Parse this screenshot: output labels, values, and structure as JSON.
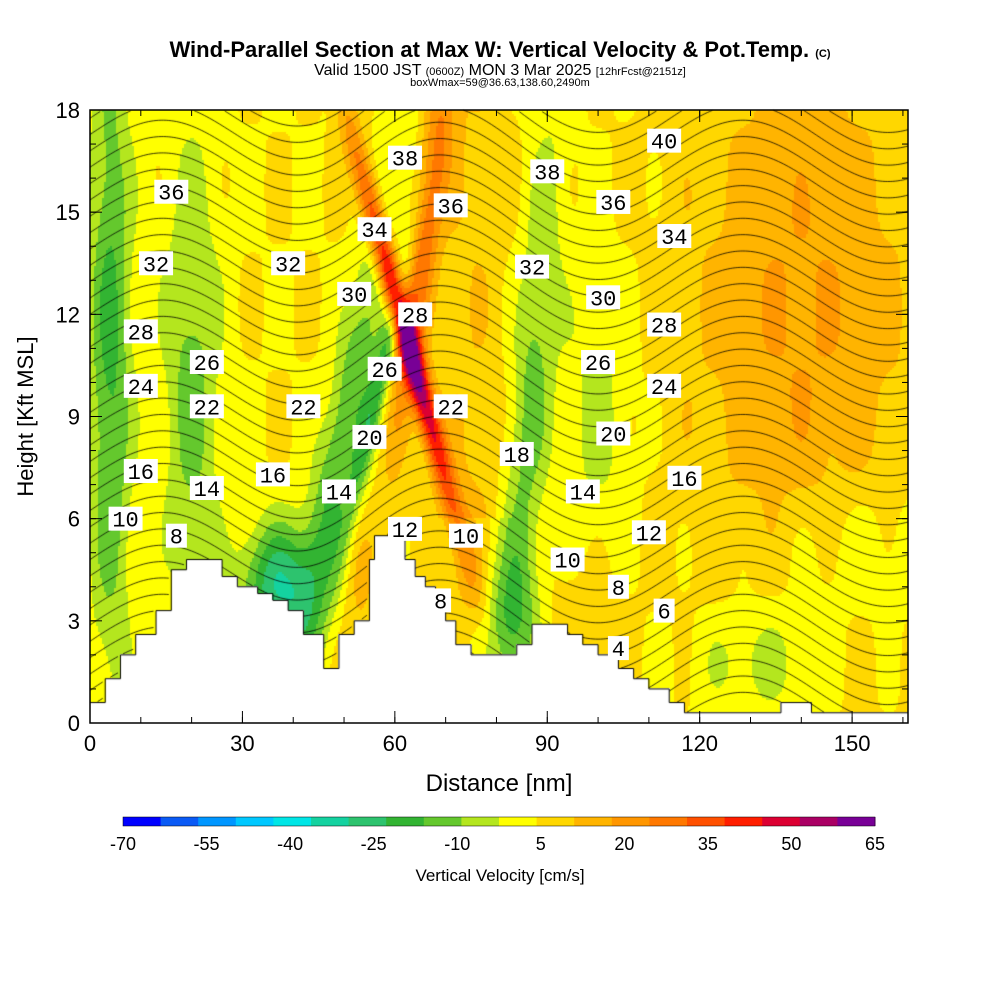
{
  "header": {
    "title": "Wind-Parallel Section at Max W: Vertical Velocity & Pot.Temp.",
    "copyright": "(C)",
    "valid_prefix": "Valid 1500 JST",
    "valid_utc": "(0600Z)",
    "valid_date": "MON 3 Mar 2025",
    "forecast": "[12hrFcst@2151z]",
    "box_info": "boxWmax=59@36.63,138.60,2490m"
  },
  "colorbar": {
    "label": "Vertical Velocity [cm/s]",
    "tick_labels": [
      "-70",
      "-55",
      "-40",
      "-25",
      "-10",
      "5",
      "20",
      "35",
      "50",
      "65"
    ],
    "colors": [
      "#0000ff",
      "#0a5af5",
      "#0096ff",
      "#00c8ff",
      "#00e6e6",
      "#14d2a0",
      "#2dc36e",
      "#32b432",
      "#64c82d",
      "#b4e61e",
      "#ffff00",
      "#ffd700",
      "#ffb400",
      "#ff9600",
      "#ff7800",
      "#ff5000",
      "#ff1e00",
      "#dc0032",
      "#aa0064",
      "#780096"
    ]
  },
  "chart_data": {
    "type": "heatmap",
    "title": "Wind-Parallel Section at Max W: Vertical Velocity & Pot.Temp.",
    "xlabel": "Distance [nm]",
    "ylabel": "Height [Kft MSL]",
    "xlim": [
      0,
      161
    ],
    "ylim": [
      0,
      18
    ],
    "x_ticks": [
      "0",
      "30",
      "60",
      "90",
      "120",
      "150"
    ],
    "y_ticks": [
      "0",
      "3",
      "6",
      "9",
      "12",
      "15",
      "18"
    ],
    "fill_variable": "Vertical Velocity [cm/s]",
    "fill_range": [
      -70,
      65
    ],
    "max_w": 59,
    "contour_variable": "Potential temperature (C)",
    "contour_labels": [
      {
        "text": "40",
        "x": 113,
        "y": 17.1
      },
      {
        "text": "38",
        "x": 62,
        "y": 16.6
      },
      {
        "text": "38",
        "x": 90,
        "y": 16.2
      },
      {
        "text": "36",
        "x": 16,
        "y": 15.6
      },
      {
        "text": "36",
        "x": 71,
        "y": 15.2
      },
      {
        "text": "36",
        "x": 103,
        "y": 15.3
      },
      {
        "text": "34",
        "x": 56,
        "y": 14.5
      },
      {
        "text": "34",
        "x": 115,
        "y": 14.3
      },
      {
        "text": "32",
        "x": 13,
        "y": 13.5
      },
      {
        "text": "32",
        "x": 39,
        "y": 13.5
      },
      {
        "text": "32",
        "x": 87,
        "y": 13.4
      },
      {
        "text": "30",
        "x": 52,
        "y": 12.6
      },
      {
        "text": "30",
        "x": 101,
        "y": 12.5
      },
      {
        "text": "28",
        "x": 10,
        "y": 11.5
      },
      {
        "text": "28",
        "x": 64,
        "y": 12.0
      },
      {
        "text": "28",
        "x": 113,
        "y": 11.7
      },
      {
        "text": "26",
        "x": 23,
        "y": 10.6
      },
      {
        "text": "26",
        "x": 58,
        "y": 10.4
      },
      {
        "text": "26",
        "x": 100,
        "y": 10.6
      },
      {
        "text": "24",
        "x": 10,
        "y": 9.9
      },
      {
        "text": "24",
        "x": 113,
        "y": 9.9
      },
      {
        "text": "22",
        "x": 23,
        "y": 9.3
      },
      {
        "text": "22",
        "x": 42,
        "y": 9.3
      },
      {
        "text": "22",
        "x": 71,
        "y": 9.3
      },
      {
        "text": "20",
        "x": 55,
        "y": 8.4
      },
      {
        "text": "20",
        "x": 103,
        "y": 8.5
      },
      {
        "text": "18",
        "x": 84,
        "y": 7.9
      },
      {
        "text": "16",
        "x": 10,
        "y": 7.4
      },
      {
        "text": "16",
        "x": 36,
        "y": 7.3
      },
      {
        "text": "16",
        "x": 117,
        "y": 7.2
      },
      {
        "text": "14",
        "x": 23,
        "y": 6.9
      },
      {
        "text": "14",
        "x": 49,
        "y": 6.8
      },
      {
        "text": "14",
        "x": 97,
        "y": 6.8
      },
      {
        "text": "12",
        "x": 62,
        "y": 5.7
      },
      {
        "text": "12",
        "x": 110,
        "y": 5.6
      },
      {
        "text": "10",
        "x": 7,
        "y": 6.0
      },
      {
        "text": "10",
        "x": 74,
        "y": 5.5
      },
      {
        "text": "10",
        "x": 94,
        "y": 4.8
      },
      {
        "text": "8",
        "x": 17,
        "y": 5.5
      },
      {
        "text": "8",
        "x": 69,
        "y": 3.6
      },
      {
        "text": "8",
        "x": 104,
        "y": 4.0
      },
      {
        "text": "6",
        "x": 113,
        "y": 3.3
      },
      {
        "text": "4",
        "x": 104,
        "y": 2.2
      }
    ],
    "terrain_profile": [
      [
        0,
        0.6
      ],
      [
        3,
        0.6
      ],
      [
        3,
        1.3
      ],
      [
        6,
        1.3
      ],
      [
        6,
        2.0
      ],
      [
        9,
        2.0
      ],
      [
        9,
        2.6
      ],
      [
        13,
        2.6
      ],
      [
        13,
        3.3
      ],
      [
        16,
        3.3
      ],
      [
        16,
        4.5
      ],
      [
        19,
        4.5
      ],
      [
        19,
        4.8
      ],
      [
        26,
        4.8
      ],
      [
        26,
        4.3
      ],
      [
        29,
        4.3
      ],
      [
        29,
        4.0
      ],
      [
        33,
        4.0
      ],
      [
        33,
        3.8
      ],
      [
        36,
        3.8
      ],
      [
        36,
        3.6
      ],
      [
        39,
        3.6
      ],
      [
        39,
        3.3
      ],
      [
        42,
        3.3
      ],
      [
        42,
        2.6
      ],
      [
        46,
        2.6
      ],
      [
        46,
        1.6
      ],
      [
        49,
        1.6
      ],
      [
        49,
        2.6
      ],
      [
        52,
        2.6
      ],
      [
        52,
        3.0
      ],
      [
        55,
        3.0
      ],
      [
        55,
        4.8
      ],
      [
        56,
        4.8
      ],
      [
        56,
        5.5
      ],
      [
        59,
        5.5
      ],
      [
        62,
        5.5
      ],
      [
        62,
        4.8
      ],
      [
        64,
        4.8
      ],
      [
        64,
        4.3
      ],
      [
        66,
        4.3
      ],
      [
        66,
        4.0
      ],
      [
        68,
        4.0
      ],
      [
        68,
        3.6
      ],
      [
        70,
        3.6
      ],
      [
        70,
        3.0
      ],
      [
        72,
        3.0
      ],
      [
        72,
        2.3
      ],
      [
        75,
        2.3
      ],
      [
        75,
        2.0
      ],
      [
        84,
        2.0
      ],
      [
        84,
        2.3
      ],
      [
        87,
        2.3
      ],
      [
        87,
        2.9
      ],
      [
        94,
        2.9
      ],
      [
        94,
        2.6
      ],
      [
        97,
        2.6
      ],
      [
        97,
        2.3
      ],
      [
        100,
        2.3
      ],
      [
        100,
        2.0
      ],
      [
        104,
        2.0
      ],
      [
        104,
        1.6
      ],
      [
        107,
        1.6
      ],
      [
        107,
        1.3
      ],
      [
        110,
        1.3
      ],
      [
        110,
        1.0
      ],
      [
        114,
        1.0
      ],
      [
        114,
        0.6
      ],
      [
        117,
        0.6
      ],
      [
        117,
        0.3
      ],
      [
        136,
        0.3
      ],
      [
        136,
        0.6
      ],
      [
        142,
        0.6
      ],
      [
        142,
        0.3
      ],
      [
        161,
        0.3
      ]
    ]
  }
}
